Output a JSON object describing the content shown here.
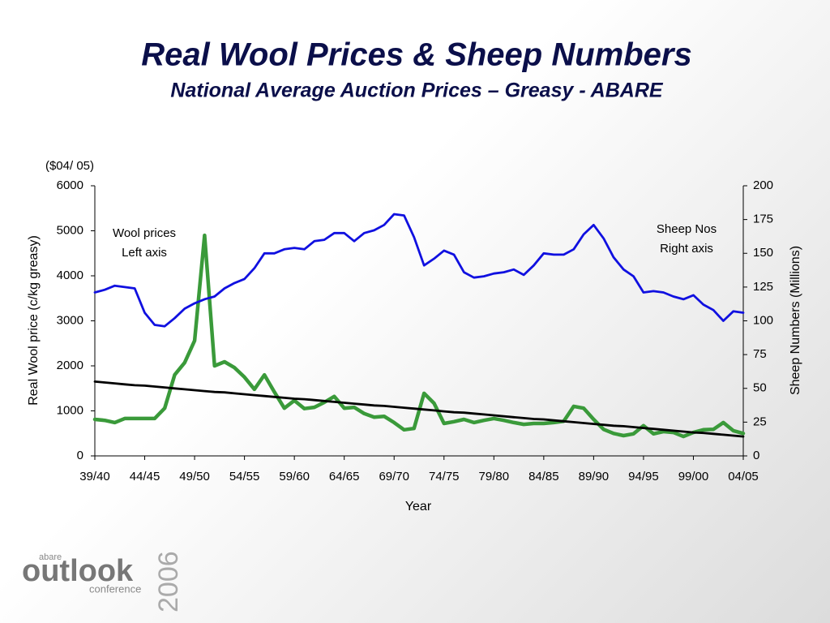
{
  "chart_data": {
    "type": "line",
    "title": "Real Wool Prices & Sheep Numbers",
    "subtitle": "National Average Auction Prices – Greasy - ABARE",
    "y_unit_label": "($04/ 05)",
    "ylabel": "Real Wool price (c/kg greasy)",
    "y2label": "Sheep Numbers (Millions)",
    "xlabel": "Year",
    "annotations": [
      {
        "lines": [
          "Wool prices",
          "Left axis"
        ]
      },
      {
        "lines": [
          "Sheep Nos",
          "Right axis"
        ]
      }
    ],
    "categories": [
      "39/40",
      null,
      null,
      null,
      null,
      "44/45",
      null,
      null,
      null,
      null,
      "49/50",
      null,
      null,
      null,
      null,
      "54/55",
      null,
      null,
      null,
      null,
      "59/60",
      null,
      null,
      null,
      null,
      "64/65",
      null,
      null,
      null,
      null,
      "69/70",
      null,
      null,
      null,
      null,
      "74/75",
      null,
      null,
      null,
      null,
      "79/80",
      null,
      null,
      null,
      null,
      "84/85",
      null,
      null,
      null,
      null,
      "89/90",
      null,
      null,
      null,
      null,
      "94/95",
      null,
      null,
      null,
      null,
      "99/00",
      null,
      null,
      null,
      null,
      "04/05"
    ],
    "series": [
      {
        "color": "#3a9a3a",
        "axis": "y",
        "values": [
          810,
          790,
          740,
          830,
          830,
          830,
          830,
          1060,
          1800,
          2070,
          2560,
          4900,
          2000,
          2090,
          1960,
          1750,
          1480,
          1800,
          1420,
          1060,
          1230,
          1050,
          1080,
          1190,
          1320,
          1060,
          1080,
          940,
          860,
          880,
          740,
          580,
          610,
          1390,
          1170,
          720,
          760,
          810,
          740,
          790,
          830,
          790,
          740,
          700,
          720,
          720,
          740,
          770,
          1100,
          1060,
          810,
          590,
          500,
          450,
          490,
          670,
          490,
          540,
          520,
          430,
          520,
          580,
          590,
          740,
          560,
          500
        ]
      },
      {
        "color": "#1010e0",
        "axis": "y2",
        "values": [
          121,
          123,
          126,
          125,
          124,
          106,
          97,
          96,
          102,
          109,
          113,
          116,
          118,
          124,
          128,
          131,
          139,
          150,
          150,
          153,
          154,
          153,
          159,
          160,
          165,
          165,
          159,
          165,
          167,
          171,
          179,
          178,
          162,
          141,
          146,
          152,
          149,
          136,
          132,
          133,
          135,
          136,
          138,
          134,
          141,
          150,
          149,
          149,
          153,
          164,
          171,
          161,
          147,
          138,
          133,
          121,
          122,
          121,
          118,
          116,
          119,
          112,
          108,
          100,
          107,
          106
        ]
      },
      {
        "color": "#000000",
        "axis": "y",
        "values": [
          1650,
          1630,
          1610,
          1590,
          1570,
          1560,
          1540,
          1520,
          1500,
          1480,
          1460,
          1440,
          1420,
          1410,
          1390,
          1370,
          1350,
          1330,
          1310,
          1290,
          1270,
          1260,
          1240,
          1220,
          1200,
          1180,
          1160,
          1140,
          1120,
          1110,
          1090,
          1070,
          1050,
          1030,
          1010,
          990,
          970,
          960,
          940,
          920,
          900,
          880,
          860,
          840,
          820,
          810,
          790,
          770,
          750,
          730,
          710,
          690,
          670,
          660,
          640,
          620,
          600,
          580,
          560,
          540,
          520,
          510,
          490,
          470,
          450,
          430
        ]
      }
    ],
    "ylim": [
      0,
      6000
    ],
    "yticks": [
      0,
      1000,
      2000,
      3000,
      4000,
      5000,
      6000
    ],
    "y2lim": [
      0,
      200
    ],
    "y2ticks": [
      0,
      25,
      50,
      75,
      100,
      125,
      150,
      175,
      200
    ]
  },
  "logo": {
    "small": "abare",
    "main": "outlook",
    "sub": "conference",
    "year": "2006"
  }
}
